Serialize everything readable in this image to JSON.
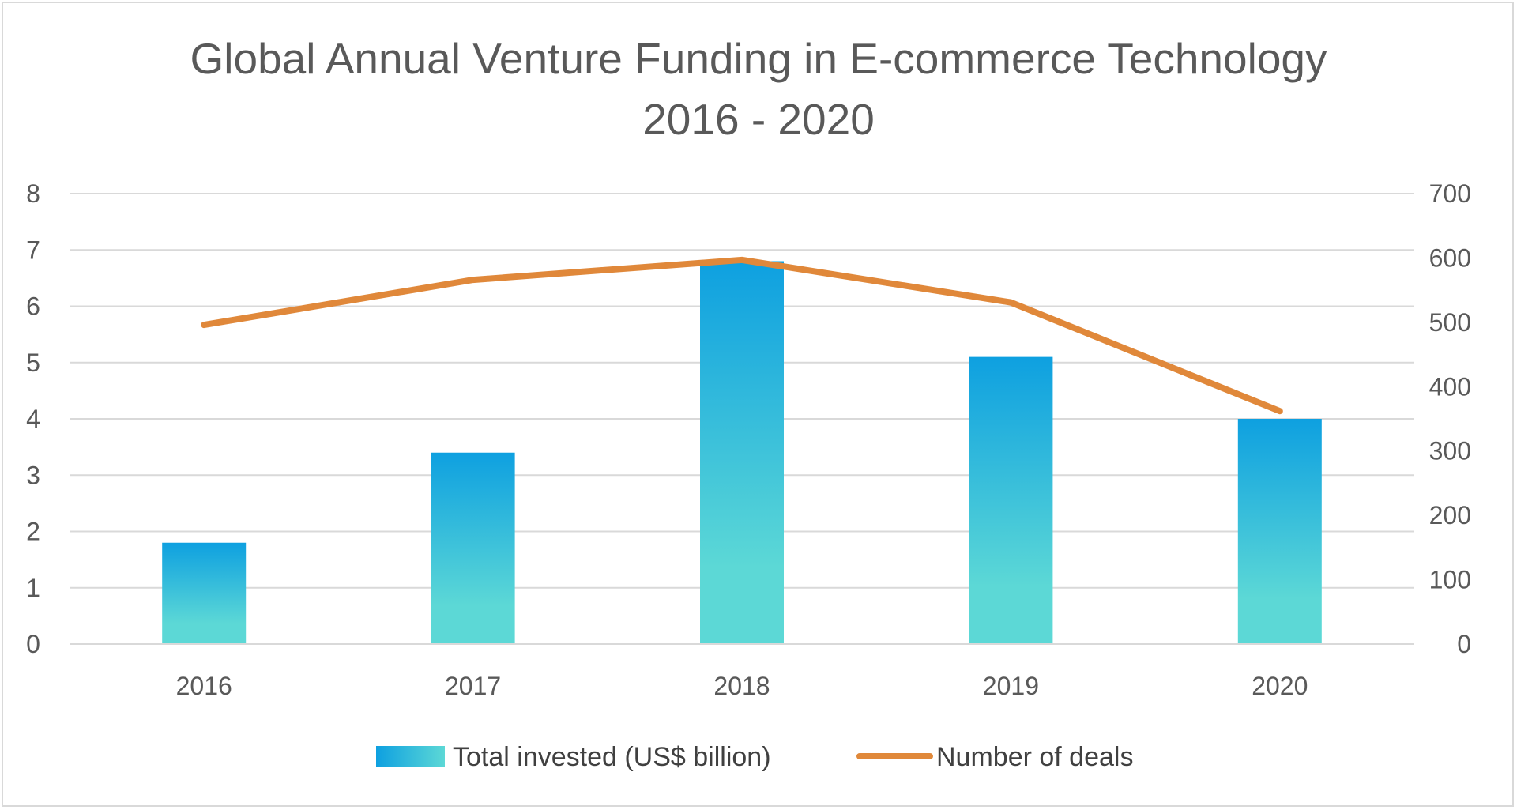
{
  "chart_data": {
    "type": "bar",
    "title": "Global Annual Venture Funding in E-commerce Technology",
    "subtitle": "2016 - 2020",
    "categories": [
      "2016",
      "2017",
      "2018",
      "2019",
      "2020"
    ],
    "series": [
      {
        "name": "Total invested (US$ billion)",
        "type": "bar",
        "axis": "left",
        "values": [
          1.8,
          3.4,
          6.8,
          5.1,
          4.0
        ],
        "color_top": "#0ea0e0",
        "color_bottom": "#5cd8d6"
      },
      {
        "name": "Number of deals",
        "type": "line",
        "axis": "right",
        "values": [
          496,
          566,
          597,
          531,
          362
        ],
        "color": "#e0883a"
      }
    ],
    "ylim": [
      0,
      8
    ],
    "y_ticks": [
      "0",
      "1",
      "2",
      "3",
      "4",
      "5",
      "6",
      "7",
      "8"
    ],
    "y2lim": [
      0,
      700
    ],
    "y2_ticks": [
      "0",
      "100",
      "200",
      "300",
      "400",
      "500",
      "600",
      "700"
    ],
    "grid": true,
    "legend": "bottom"
  }
}
